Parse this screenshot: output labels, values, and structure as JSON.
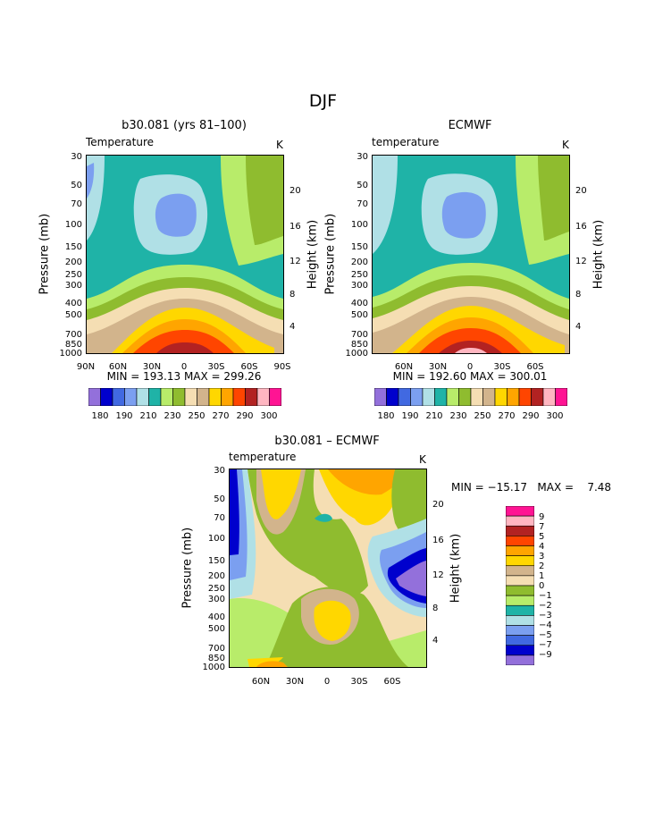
{
  "page": {
    "title": "DJF"
  },
  "chart_data": [
    {
      "type": "contour",
      "title": "b30.081 (yrs 81–100)",
      "left_label": "Temperature",
      "right_label": "K",
      "ylabel": "Pressure (mb)",
      "y2label": "Height (km)",
      "x_ticks": [
        "90N",
        "60N",
        "30N",
        "0",
        "30S",
        "60S",
        "90S"
      ],
      "y_ticks": [
        "30",
        "50",
        "70",
        "100",
        "150",
        "200",
        "250",
        "300",
        "400",
        "500",
        "700",
        "850",
        "1000"
      ],
      "y2_ticks": [
        "20",
        "16",
        "12",
        "8",
        "4"
      ],
      "min_max_text": "MIN = 193.13   MAX = 299.26",
      "colorbar_labels": [
        "180",
        "190",
        "210",
        "230",
        "250",
        "270",
        "290",
        "300"
      ]
    },
    {
      "type": "contour",
      "title": "ECMWF",
      "left_label": "temperature",
      "right_label": "K",
      "ylabel": "Pressure (mb)",
      "y2label": "Height (km)",
      "x_ticks": [
        "60N",
        "30N",
        "0",
        "30S",
        "60S"
      ],
      "y_ticks": [
        "30",
        "50",
        "70",
        "100",
        "150",
        "200",
        "250",
        "300",
        "400",
        "500",
        "700",
        "850",
        "1000"
      ],
      "y2_ticks": [
        "20",
        "16",
        "12",
        "8",
        "4"
      ],
      "min_max_text": "MIN = 192.60   MAX = 300.01",
      "colorbar_labels": [
        "180",
        "190",
        "210",
        "230",
        "250",
        "270",
        "290",
        "300"
      ]
    },
    {
      "type": "contour",
      "title": "b30.081 – ECMWF",
      "left_label": "temperature",
      "right_label": "K",
      "ylabel": "Pressure (mb)",
      "y2label": "Height (km)",
      "x_ticks": [
        "60N",
        "30N",
        "0",
        "30S",
        "60S"
      ],
      "y_ticks": [
        "30",
        "50",
        "70",
        "100",
        "150",
        "200",
        "250",
        "300",
        "400",
        "500",
        "700",
        "850",
        "1000"
      ],
      "y2_ticks": [
        "20",
        "16",
        "12",
        "8",
        "4"
      ],
      "min_max_text": "MIN = −15.17   MAX =    7.48",
      "legend_levels": [
        "9",
        "7",
        "5",
        "4",
        "3",
        "2",
        "1",
        "0",
        "−1",
        "−2",
        "−3",
        "−4",
        "−5",
        "−7",
        "−9"
      ]
    }
  ],
  "colors": {
    "abs_scale": [
      "#9370db",
      "#0000cd",
      "#4169e1",
      "#7b9ff0",
      "#b0e0e6",
      "#1fb3a7",
      "#b8ec6a",
      "#8fbc2f",
      "#f5deb3",
      "#d2b48c",
      "#ffd700",
      "#ffa500",
      "#ff4500",
      "#b22222",
      "#ffb6c1",
      "#ff1493"
    ],
    "diff_scale": [
      "#ff1493",
      "#ffb6c1",
      "#b22222",
      "#ff4500",
      "#ffa500",
      "#ffd700",
      "#d2b48c",
      "#f5deb3",
      "#8fbc2f",
      "#b8ec6a",
      "#1fb3a7",
      "#b0e0e6",
      "#7b9ff0",
      "#4169e1",
      "#0000cd",
      "#9370db"
    ]
  }
}
